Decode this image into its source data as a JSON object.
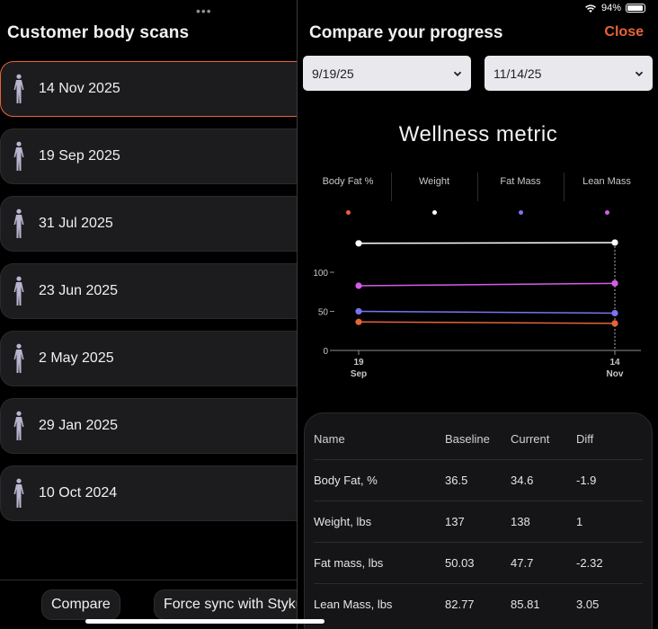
{
  "left": {
    "title": "Customer body scans",
    "scans": [
      "14 Nov 2025",
      "19 Sep 2025",
      "31 Jul 2025",
      "23 Jun 2025",
      "2 May 2025",
      "29 Jan 2025",
      "10 Oct 2024"
    ],
    "selected_index": 0,
    "compare_label": "Compare",
    "sync_label": "Force sync with Styku"
  },
  "status": {
    "battery": "94%",
    "battery_level": 0.94
  },
  "right": {
    "title": "Compare your progress",
    "close_label": "Close",
    "start_date": "9/19/25",
    "end_date": "11/14/25",
    "chart_heading": "Wellness metric"
  },
  "colors": {
    "accent": "#e8633a",
    "body_fat": "#e8633a",
    "weight": "#ffffff",
    "fat_mass": "#7b73f0",
    "lean_mass": "#d45ce8"
  },
  "chart_data": {
    "type": "line",
    "x": [
      "19 Sep",
      "14 Nov"
    ],
    "xtick_labels": [
      [
        "19",
        "Sep"
      ],
      [
        "14",
        "Nov"
      ]
    ],
    "ylim": [
      0,
      150
    ],
    "yticks": [
      0,
      50,
      100
    ],
    "grid": false,
    "legend_position": "top",
    "series": [
      {
        "name": "Body Fat %",
        "values": [
          36.5,
          34.6
        ],
        "color": "#e8633a"
      },
      {
        "name": "Weight",
        "values": [
          137,
          138
        ],
        "color": "#ffffff"
      },
      {
        "name": "Fat Mass",
        "values": [
          50.03,
          47.7
        ],
        "color": "#7b73f0"
      },
      {
        "name": "Lean Mass",
        "values": [
          82.77,
          85.81
        ],
        "color": "#d45ce8"
      }
    ]
  },
  "table": {
    "headers": [
      "Name",
      "Baseline",
      "Current",
      "Diff"
    ],
    "rows": [
      [
        "Body Fat, %",
        "36.5",
        "34.6",
        "-1.9"
      ],
      [
        "Weight, lbs",
        "137",
        "138",
        "1"
      ],
      [
        "Fat mass, lbs",
        "50.03",
        "47.7",
        "-2.32"
      ],
      [
        "Lean Mass, lbs",
        "82.77",
        "85.81",
        "3.05"
      ]
    ]
  }
}
